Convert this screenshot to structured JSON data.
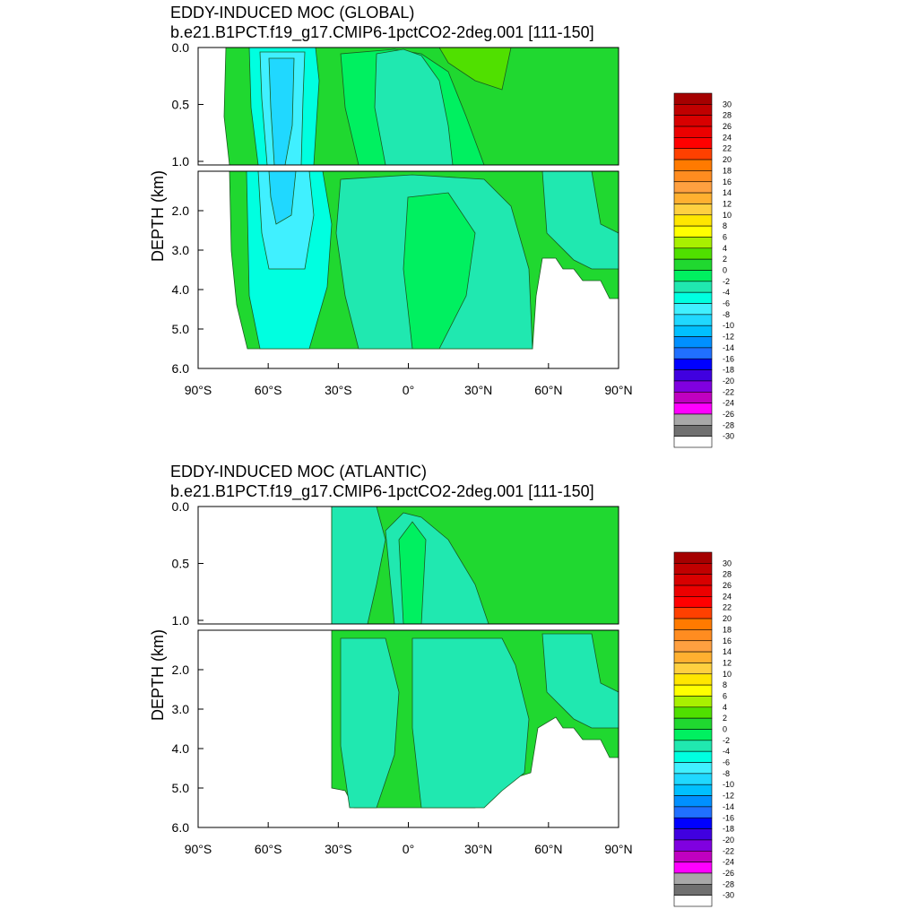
{
  "colorbar": {
    "labels": [
      "30",
      "28",
      "26",
      "24",
      "22",
      "20",
      "18",
      "16",
      "14",
      "12",
      "10",
      "8",
      "6",
      "4",
      "2",
      "0",
      "-2",
      "-4",
      "-6",
      "-8",
      "-10",
      "-12",
      "-14",
      "-16",
      "-18",
      "-20",
      "-22",
      "-24",
      "-26",
      "-28",
      "-30"
    ],
    "colors": [
      "#a50000",
      "#c00000",
      "#d80000",
      "#ec0000",
      "#ff0000",
      "#ff4000",
      "#ff7a00",
      "#ff8c20",
      "#ffa040",
      "#ffb030",
      "#ffd040",
      "#ffe600",
      "#ffff00",
      "#a8f000",
      "#50e000",
      "#20d830",
      "#00f060",
      "#20e8b0",
      "#00ffe0",
      "#40f0ff",
      "#20d8ff",
      "#00c0ff",
      "#0090ff",
      "#2070ff",
      "#0000ff",
      "#4000e0",
      "#8000e0",
      "#c000c0",
      "#ff00ff",
      "#a8a8a8",
      "#707070",
      "#ffffff"
    ]
  },
  "chart_data": [
    {
      "type": "heatmap",
      "title": "EDDY-INDUCED MOC (GLOBAL)",
      "subtitle": "b.e21.B1PCT.f19_g17.CMIP6-1pctCO2-2deg.001 [111-150]",
      "xlabel": "",
      "ylabel": "DEPTH (km)",
      "x_tick_labels": [
        "90°S",
        "60°S",
        "30°S",
        "0°",
        "30°N",
        "60°N",
        "90°N"
      ],
      "x_ticks": [
        -90,
        -60,
        -30,
        0,
        30,
        60,
        90
      ],
      "xlim": [
        -90,
        90
      ],
      "upper_ylim": [
        0.0,
        1.0
      ],
      "upper_y_tick_labels": [
        "0.0",
        "0.5",
        "1.0"
      ],
      "lower_ylim": [
        1.0,
        6.0
      ],
      "lower_y_tick_labels": [
        "2.0",
        "3.0",
        "4.0",
        "5.0",
        "6.0"
      ],
      "contour_interval": 2,
      "color_range": [
        -30,
        30
      ],
      "regions": [
        {
          "name": "background",
          "value": 1,
          "lat": [
            -77,
            90
          ],
          "depth": [
            0.0,
            5.5
          ]
        },
        {
          "name": "southern-cell",
          "value": -3,
          "lat": [
            -68,
            -38
          ],
          "depth": [
            0.0,
            4.8
          ]
        },
        {
          "name": "southern-core",
          "value": -7,
          "lat": [
            -64,
            -46
          ],
          "depth": [
            0.05,
            2.4
          ]
        },
        {
          "name": "southern-min",
          "value": -9,
          "lat": [
            -60,
            -52
          ],
          "depth": [
            0.2,
            1.0
          ]
        },
        {
          "name": "tropical-cell",
          "value": -1,
          "lat": [
            -25,
            30
          ],
          "depth": [
            0.1,
            5.5
          ]
        },
        {
          "name": "northern-cell",
          "value": -1,
          "lat": [
            40,
            60
          ],
          "depth": [
            1.2,
            3.5
          ]
        },
        {
          "name": "northern-max",
          "value": 3,
          "lat": [
            15,
            40
          ],
          "depth": [
            0.0,
            0.2
          ]
        }
      ]
    },
    {
      "type": "heatmap",
      "title": "EDDY-INDUCED MOC (ATLANTIC)",
      "subtitle": "b.e21.B1PCT.f19_g17.CMIP6-1pctCO2-2deg.001 [111-150]",
      "xlabel": "",
      "ylabel": "DEPTH (km)",
      "x_tick_labels": [
        "90°S",
        "60°S",
        "30°S",
        "0°",
        "30°N",
        "60°N",
        "90°N"
      ],
      "x_ticks": [
        -90,
        -60,
        -30,
        0,
        30,
        60,
        90
      ],
      "xlim": [
        -90,
        90
      ],
      "upper_ylim": [
        0.0,
        1.0
      ],
      "upper_y_tick_labels": [
        "0.0",
        "0.5",
        "1.0"
      ],
      "lower_ylim": [
        1.0,
        6.0
      ],
      "lower_y_tick_labels": [
        "2.0",
        "3.0",
        "4.0",
        "5.0",
        "6.0"
      ],
      "contour_interval": 2,
      "color_range": [
        -30,
        30
      ],
      "regions": [
        {
          "name": "background",
          "value": 1,
          "lat": [
            -33,
            90
          ],
          "depth": [
            0.0,
            5.5
          ]
        },
        {
          "name": "south-atlantic-cell",
          "value": -1,
          "lat": [
            -33,
            -10
          ],
          "depth": [
            0.1,
            5.3
          ]
        },
        {
          "name": "tropical-cell",
          "value": -1,
          "lat": [
            -5,
            45
          ],
          "depth": [
            0.2,
            5.5
          ]
        },
        {
          "name": "equatorial-max",
          "value": 1,
          "lat": [
            -8,
            8
          ],
          "depth": [
            0.0,
            1.0
          ]
        }
      ]
    }
  ]
}
